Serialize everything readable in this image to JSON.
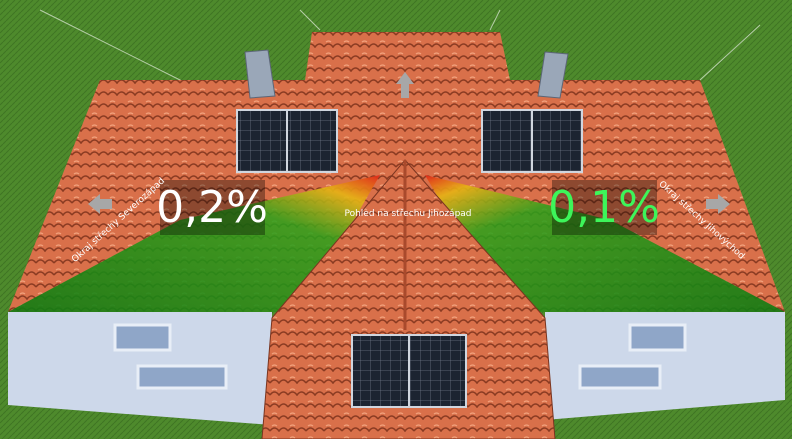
{
  "overlay": {
    "left_value": "0,2%",
    "right_value": "0,1%",
    "view_label": "Pohled na střechu Jihozápad",
    "left_edge_label": "Okraj střechy Severozápad",
    "right_edge_label": "Okraj střechy Jihovýchod"
  }
}
